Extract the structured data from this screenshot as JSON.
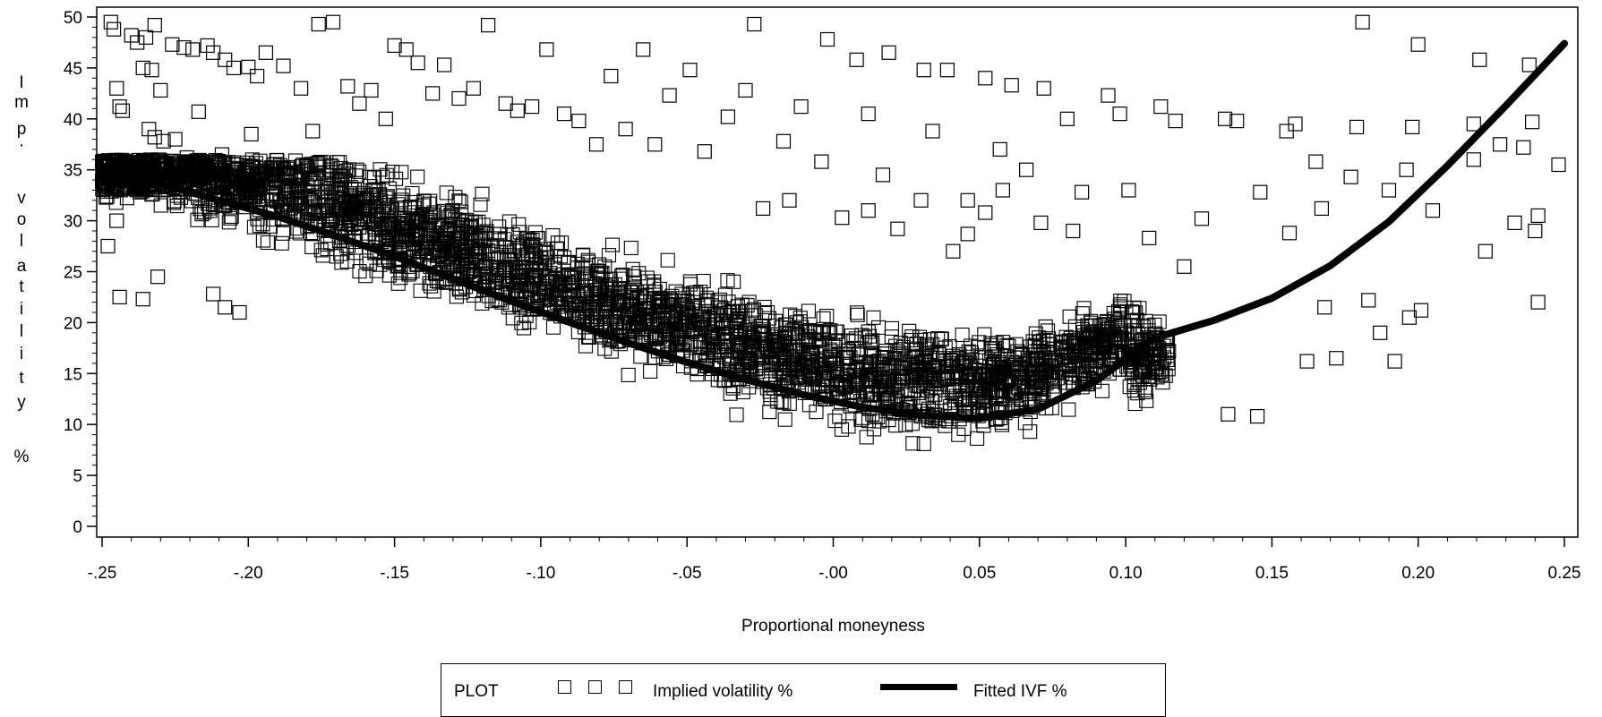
{
  "chart_data": {
    "type": "scatter",
    "title": "",
    "xlabel": "Proportional moneyness",
    "ylabel": "Imp. volatility %",
    "ylabel_letters": [
      "I",
      "m",
      "p",
      "·",
      "v",
      "o",
      "l",
      "a",
      "t",
      "i",
      "l",
      "i",
      "t",
      "y",
      "%"
    ],
    "xlim": [
      -0.25,
      0.25
    ],
    "ylim": [
      0,
      50
    ],
    "x_ticks": [
      {
        "value": -0.25,
        "label": "-.25"
      },
      {
        "value": -0.2,
        "label": "-.20"
      },
      {
        "value": -0.15,
        "label": "-.15"
      },
      {
        "value": -0.1,
        "label": "-.10"
      },
      {
        "value": -0.05,
        "label": "-.05"
      },
      {
        "value": 0.0,
        "label": "-.00"
      },
      {
        "value": 0.05,
        "label": "0.05"
      },
      {
        "value": 0.1,
        "label": "0.10"
      },
      {
        "value": 0.15,
        "label": "0.15"
      },
      {
        "value": 0.2,
        "label": "0.20"
      },
      {
        "value": 0.25,
        "label": "0.25"
      }
    ],
    "y_ticks": [
      {
        "value": 0,
        "label": "0"
      },
      {
        "value": 5,
        "label": "5"
      },
      {
        "value": 10,
        "label": "10"
      },
      {
        "value": 15,
        "label": "15"
      },
      {
        "value": 20,
        "label": "20"
      },
      {
        "value": 25,
        "label": "25"
      },
      {
        "value": 30,
        "label": "30"
      },
      {
        "value": 35,
        "label": "35"
      },
      {
        "value": 40,
        "label": "40"
      },
      {
        "value": 45,
        "label": "45"
      },
      {
        "value": 50,
        "label": "50"
      }
    ],
    "grid": false,
    "legend_position": "bottom",
    "series": [
      {
        "name": "Implied volatility %",
        "kind": "scatter",
        "marker": "open-square",
        "color": "#000000",
        "points": [
          [
            -0.248,
            27.5
          ],
          [
            -0.247,
            49.5
          ],
          [
            -0.246,
            48.8
          ],
          [
            -0.245,
            43.0
          ],
          [
            -0.244,
            41.2
          ],
          [
            -0.243,
            40.8
          ],
          [
            -0.245,
            30.0
          ],
          [
            -0.244,
            22.5
          ],
          [
            -0.24,
            48.2
          ],
          [
            -0.238,
            47.5
          ],
          [
            -0.235,
            48.0
          ],
          [
            -0.232,
            49.2
          ],
          [
            -0.236,
            45.0
          ],
          [
            -0.233,
            44.8
          ],
          [
            -0.23,
            42.8
          ],
          [
            -0.234,
            39.0
          ],
          [
            -0.232,
            38.2
          ],
          [
            -0.229,
            37.8
          ],
          [
            -0.236,
            22.3
          ],
          [
            -0.231,
            24.5
          ],
          [
            -0.226,
            47.3
          ],
          [
            -0.222,
            47.0
          ],
          [
            -0.219,
            46.8
          ],
          [
            -0.214,
            47.2
          ],
          [
            -0.212,
            46.5
          ],
          [
            -0.208,
            45.8
          ],
          [
            -0.205,
            45.0
          ],
          [
            -0.2,
            45.1
          ],
          [
            -0.197,
            44.2
          ],
          [
            -0.225,
            38.0
          ],
          [
            -0.221,
            36.2
          ],
          [
            -0.217,
            40.7
          ],
          [
            -0.213,
            35.0
          ],
          [
            -0.209,
            36.5
          ],
          [
            -0.204,
            35.5
          ],
          [
            -0.199,
            38.5
          ],
          [
            -0.212,
            22.8
          ],
          [
            -0.208,
            21.5
          ],
          [
            -0.203,
            21.0
          ],
          [
            -0.194,
            46.5
          ],
          [
            -0.188,
            45.2
          ],
          [
            -0.182,
            43.0
          ],
          [
            -0.178,
            38.8
          ],
          [
            -0.176,
            49.3
          ],
          [
            -0.171,
            49.5
          ],
          [
            -0.166,
            43.2
          ],
          [
            -0.162,
            41.5
          ],
          [
            -0.158,
            42.8
          ],
          [
            -0.153,
            40.0
          ],
          [
            -0.15,
            47.2
          ],
          [
            -0.146,
            46.8
          ],
          [
            -0.142,
            45.5
          ],
          [
            -0.137,
            42.5
          ],
          [
            -0.133,
            45.3
          ],
          [
            -0.128,
            42.0
          ],
          [
            -0.123,
            43.0
          ],
          [
            -0.118,
            49.2
          ],
          [
            -0.112,
            41.5
          ],
          [
            -0.108,
            40.8
          ],
          [
            -0.103,
            41.2
          ],
          [
            -0.098,
            46.8
          ],
          [
            -0.092,
            40.5
          ],
          [
            -0.087,
            39.8
          ],
          [
            -0.081,
            37.5
          ],
          [
            -0.076,
            44.2
          ],
          [
            -0.071,
            39.0
          ],
          [
            -0.065,
            46.8
          ],
          [
            -0.061,
            37.5
          ],
          [
            -0.056,
            42.3
          ],
          [
            -0.049,
            44.8
          ],
          [
            -0.044,
            36.8
          ],
          [
            -0.036,
            40.2
          ],
          [
            -0.03,
            42.8
          ],
          [
            -0.027,
            49.3
          ],
          [
            -0.017,
            37.8
          ],
          [
            -0.011,
            41.2
          ],
          [
            -0.004,
            35.8
          ],
          [
            -0.002,
            47.8
          ],
          [
            0.008,
            45.8
          ],
          [
            0.012,
            40.5
          ],
          [
            0.017,
            34.5
          ],
          [
            0.019,
            46.5
          ],
          [
            0.031,
            44.8
          ],
          [
            0.034,
            38.8
          ],
          [
            0.039,
            44.8
          ],
          [
            0.046,
            32.0
          ],
          [
            0.052,
            44.0
          ],
          [
            0.057,
            37.0
          ],
          [
            0.061,
            43.3
          ],
          [
            0.072,
            43.0
          ],
          [
            0.08,
            40.0
          ],
          [
            0.094,
            42.3
          ],
          [
            0.098,
            40.5
          ],
          [
            0.112,
            41.2
          ],
          [
            0.117,
            39.8
          ],
          [
            0.134,
            40.0
          ],
          [
            0.138,
            39.8
          ],
          [
            0.146,
            32.8
          ],
          [
            0.155,
            38.8
          ],
          [
            0.158,
            39.5
          ],
          [
            0.165,
            35.8
          ],
          [
            0.177,
            34.3
          ],
          [
            0.179,
            39.2
          ],
          [
            0.181,
            49.5
          ],
          [
            0.19,
            33.0
          ],
          [
            0.196,
            35.0
          ],
          [
            0.198,
            39.2
          ],
          [
            0.2,
            47.3
          ],
          [
            0.205,
            31.0
          ],
          [
            0.219,
            36.0
          ],
          [
            0.219,
            39.5
          ],
          [
            0.221,
            45.8
          ],
          [
            0.223,
            27.0
          ],
          [
            0.228,
            37.5
          ],
          [
            0.233,
            29.8
          ],
          [
            0.236,
            37.2
          ],
          [
            0.238,
            45.3
          ],
          [
            0.239,
            39.7
          ],
          [
            0.24,
            29.0
          ],
          [
            0.241,
            22.0
          ],
          [
            0.241,
            30.5
          ],
          [
            0.248,
            35.5
          ],
          [
            0.192,
            16.2
          ],
          [
            0.197,
            20.5
          ],
          [
            0.187,
            19.0
          ],
          [
            0.201,
            21.2
          ],
          [
            0.172,
            16.5
          ],
          [
            0.162,
            16.2
          ],
          [
            0.145,
            10.8
          ],
          [
            0.135,
            11.0
          ],
          [
            0.168,
            21.5
          ],
          [
            0.183,
            22.2
          ],
          [
            0.156,
            28.8
          ],
          [
            0.167,
            31.2
          ],
          [
            0.126,
            30.2
          ],
          [
            0.108,
            28.3
          ],
          [
            0.12,
            25.5
          ],
          [
            0.101,
            33.0
          ],
          [
            0.085,
            32.8
          ],
          [
            0.082,
            29.0
          ],
          [
            0.071,
            29.8
          ],
          [
            0.066,
            35.0
          ],
          [
            0.052,
            30.8
          ],
          [
            0.046,
            28.7
          ],
          [
            0.03,
            32.0
          ],
          [
            0.022,
            29.2
          ],
          [
            0.012,
            31.0
          ],
          [
            0.003,
            30.3
          ],
          [
            -0.015,
            32.0
          ],
          [
            -0.024,
            31.2
          ],
          [
            0.058,
            33.0
          ],
          [
            0.041,
            27.0
          ]
        ]
      },
      {
        "name": "Fitted IVF %",
        "kind": "line",
        "color": "#000000",
        "points": [
          [
            -0.25,
            34.7
          ],
          [
            -0.23,
            33.6
          ],
          [
            -0.21,
            32.0
          ],
          [
            -0.19,
            30.4
          ],
          [
            -0.17,
            28.5
          ],
          [
            -0.15,
            26.5
          ],
          [
            -0.13,
            24.3
          ],
          [
            -0.11,
            22.1
          ],
          [
            -0.09,
            20.0
          ],
          [
            -0.07,
            18.0
          ],
          [
            -0.05,
            16.1
          ],
          [
            -0.03,
            14.4
          ],
          [
            -0.01,
            12.9
          ],
          [
            0.01,
            11.7
          ],
          [
            0.03,
            10.9
          ],
          [
            0.05,
            10.6
          ],
          [
            0.07,
            11.5
          ],
          [
            0.09,
            14.3
          ],
          [
            0.11,
            18.5
          ],
          [
            0.13,
            20.2
          ],
          [
            0.15,
            22.4
          ],
          [
            0.17,
            25.6
          ],
          [
            0.19,
            29.9
          ],
          [
            0.21,
            35.4
          ],
          [
            0.23,
            41.3
          ],
          [
            0.25,
            47.4
          ]
        ]
      }
    ]
  },
  "legend": {
    "heading": "PLOT",
    "items": [
      {
        "label": "Implied volatility %",
        "marker": "open-square"
      },
      {
        "label": "Fitted IVF %",
        "marker": "thick-line"
      }
    ]
  }
}
